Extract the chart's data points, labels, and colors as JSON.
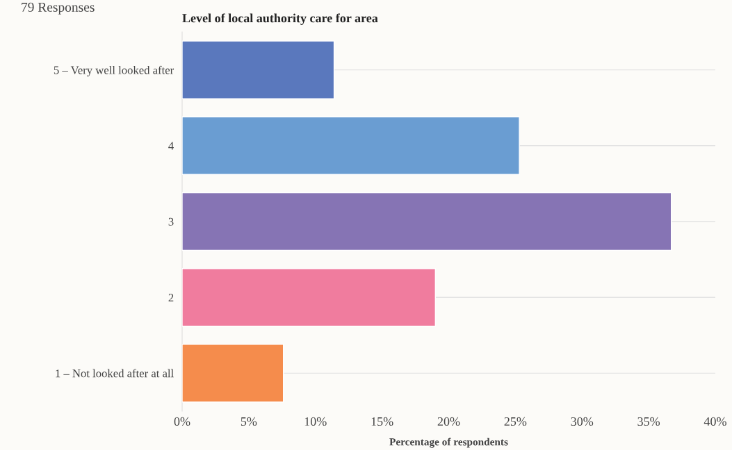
{
  "chart_data": {
    "type": "bar",
    "orientation": "horizontal",
    "title": "Level of local authority care for area",
    "xlabel": "Percentage of respondents",
    "annotations": [
      "79 Responses"
    ],
    "categories": [
      "5 – Very well looked after",
      "4",
      "3",
      "2",
      "1 – Not looked after at all"
    ],
    "values": [
      11.4,
      25.3,
      36.7,
      19.0,
      7.6
    ],
    "colors": [
      "#5a78bd",
      "#6a9dd2",
      "#8674b4",
      "#f07c9e",
      "#f58c4c"
    ],
    "xlim": [
      0,
      40
    ],
    "xticks": [
      {
        "value": 0,
        "label": "0%"
      },
      {
        "value": 5,
        "label": "5%"
      },
      {
        "value": 10,
        "label": "10%"
      },
      {
        "value": 15,
        "label": "15%"
      },
      {
        "value": 20,
        "label": "20%"
      },
      {
        "value": 25,
        "label": "25%"
      },
      {
        "value": 30,
        "label": "30%"
      },
      {
        "value": 35,
        "label": "35%"
      },
      {
        "value": 40,
        "label": "40%"
      }
    ],
    "grid": "y",
    "legend": false
  }
}
